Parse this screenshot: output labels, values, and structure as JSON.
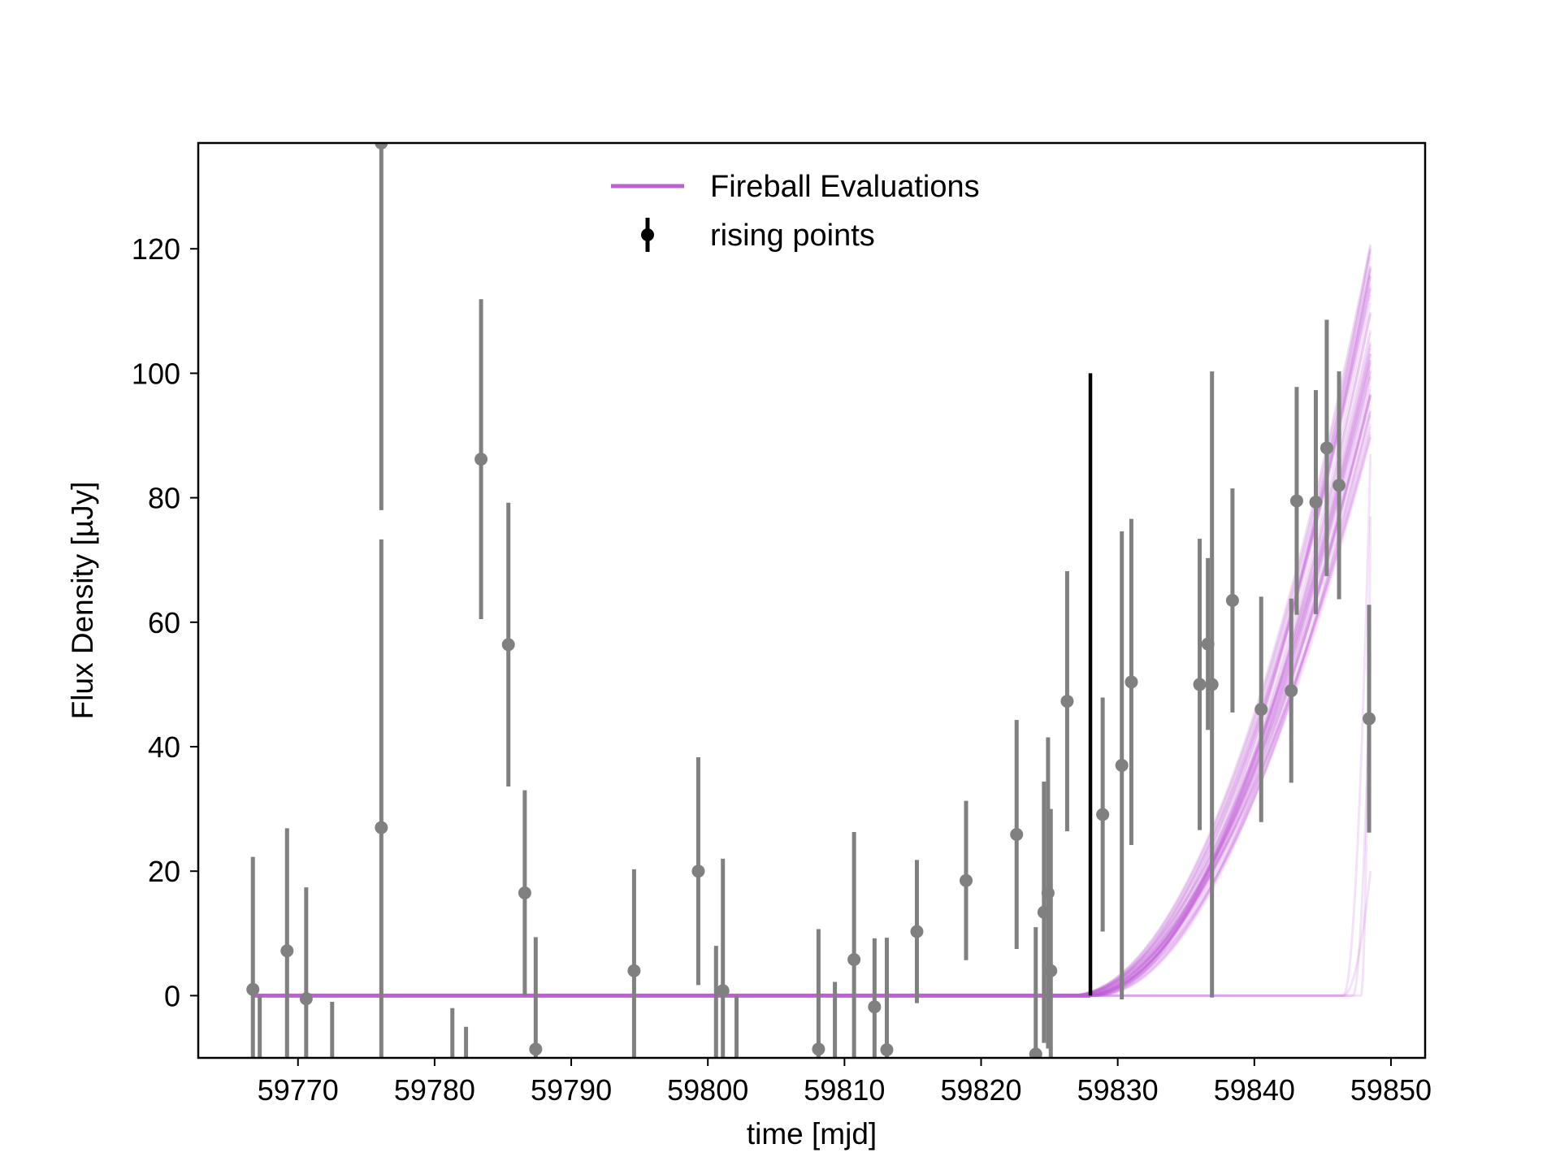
{
  "chart_data": {
    "type": "scatter",
    "title": "",
    "xlabel": "time [mjd]",
    "ylabel": "Flux Density [µJy]",
    "xlim": [
      59762.7,
      59852.5
    ],
    "ylim": [
      -10,
      137
    ],
    "xticks": [
      59770,
      59780,
      59790,
      59800,
      59810,
      59820,
      59830,
      59840,
      59850
    ],
    "yticks": [
      0,
      20,
      40,
      60,
      80,
      100,
      120
    ],
    "grid": false,
    "legend_position": "top-center",
    "colors": {
      "model": "#bf5fd6",
      "points": "#808080",
      "marker": "#000000"
    },
    "legend": [
      {
        "label": "Fireball Evaluations",
        "kind": "line"
      },
      {
        "label": "rising points",
        "kind": "errorbar"
      }
    ],
    "vertical_marker": {
      "x": 59828,
      "y0": 0,
      "y1": 100
    },
    "model": {
      "name": "Fireball Evaluations",
      "t0_range": [
        59826.3,
        59828.5
      ],
      "flux_at_end_range": [
        89,
        121
      ],
      "x_end": 59848.5,
      "late_t0": [
        59846.5,
        59847.2,
        59847.8
      ],
      "late_flux_at_end": [
        20,
        55,
        77,
        87
      ]
    },
    "series": [
      {
        "name": "rising points",
        "points": [
          {
            "x": 59766.7,
            "y": 1,
            "err": 21.3
          },
          {
            "x": 59767.2,
            "y": -12,
            "err": 12
          },
          {
            "x": 59769.2,
            "y": 7.2,
            "err": 19.7
          },
          {
            "x": 59770.6,
            "y": -0.5,
            "err": 17.9
          },
          {
            "x": 59772.5,
            "y": -17,
            "err": 16
          },
          {
            "x": 59776.1,
            "y": 27,
            "err": 46.3
          },
          {
            "x": 59776.1,
            "y": 137,
            "err": 59
          },
          {
            "x": 59781.3,
            "y": -17,
            "err": 15
          },
          {
            "x": 59782.3,
            "y": -17,
            "err": 12
          },
          {
            "x": 59783.4,
            "y": 86.2,
            "err": 25.7
          },
          {
            "x": 59785.4,
            "y": 56.4,
            "err": 22.8
          },
          {
            "x": 59786.6,
            "y": 16.5,
            "err": 16.5
          },
          {
            "x": 59787.4,
            "y": -8.6,
            "err": 18
          },
          {
            "x": 59794.6,
            "y": 4,
            "err": 16.3
          },
          {
            "x": 59799.3,
            "y": 20,
            "err": 18.3
          },
          {
            "x": 59800.6,
            "y": -12,
            "err": 20
          },
          {
            "x": 59801.1,
            "y": 0.8,
            "err": 21.2
          },
          {
            "x": 59802.1,
            "y": -12,
            "err": 12
          },
          {
            "x": 59808.1,
            "y": -8.6,
            "err": 19.3
          },
          {
            "x": 59809.3,
            "y": -12,
            "err": 14.2
          },
          {
            "x": 59810.7,
            "y": 5.8,
            "err": 20.5
          },
          {
            "x": 59812.2,
            "y": -1.8,
            "err": 11
          },
          {
            "x": 59813.1,
            "y": -8.7,
            "err": 18
          },
          {
            "x": 59815.3,
            "y": 10.3,
            "err": 11.5
          },
          {
            "x": 59818.9,
            "y": 18.5,
            "err": 12.8
          },
          {
            "x": 59822.6,
            "y": 25.9,
            "err": 18.4
          },
          {
            "x": 59824,
            "y": -9.4,
            "err": 20.4
          },
          {
            "x": 59824.6,
            "y": 13.4,
            "err": 21
          },
          {
            "x": 59824.9,
            "y": 16.5,
            "err": 25
          },
          {
            "x": 59825.1,
            "y": 4,
            "err": 26
          },
          {
            "x": 59826.3,
            "y": 47.3,
            "err": 20.9
          },
          {
            "x": 59828.9,
            "y": 29.1,
            "err": 18.8
          },
          {
            "x": 59830.3,
            "y": 37,
            "err": 37.6
          },
          {
            "x": 59831,
            "y": 50.4,
            "err": 26.2
          },
          {
            "x": 59836,
            "y": 50,
            "err": 23.4
          },
          {
            "x": 59836.6,
            "y": 56.5,
            "err": 13.8
          },
          {
            "x": 59836.9,
            "y": 50,
            "err": 50.3
          },
          {
            "x": 59838.4,
            "y": 63.5,
            "err": 18
          },
          {
            "x": 59840.5,
            "y": 46,
            "err": 18.1
          },
          {
            "x": 59842.7,
            "y": 49,
            "err": 14.8
          },
          {
            "x": 59843.1,
            "y": 79.5,
            "err": 18.3
          },
          {
            "x": 59844.5,
            "y": 79.3,
            "err": 18
          },
          {
            "x": 59845.3,
            "y": 88,
            "err": 20.6
          },
          {
            "x": 59846.2,
            "y": 82,
            "err": 18.3
          },
          {
            "x": 59848.4,
            "y": 44.5,
            "err": 18.3
          }
        ]
      }
    ]
  }
}
